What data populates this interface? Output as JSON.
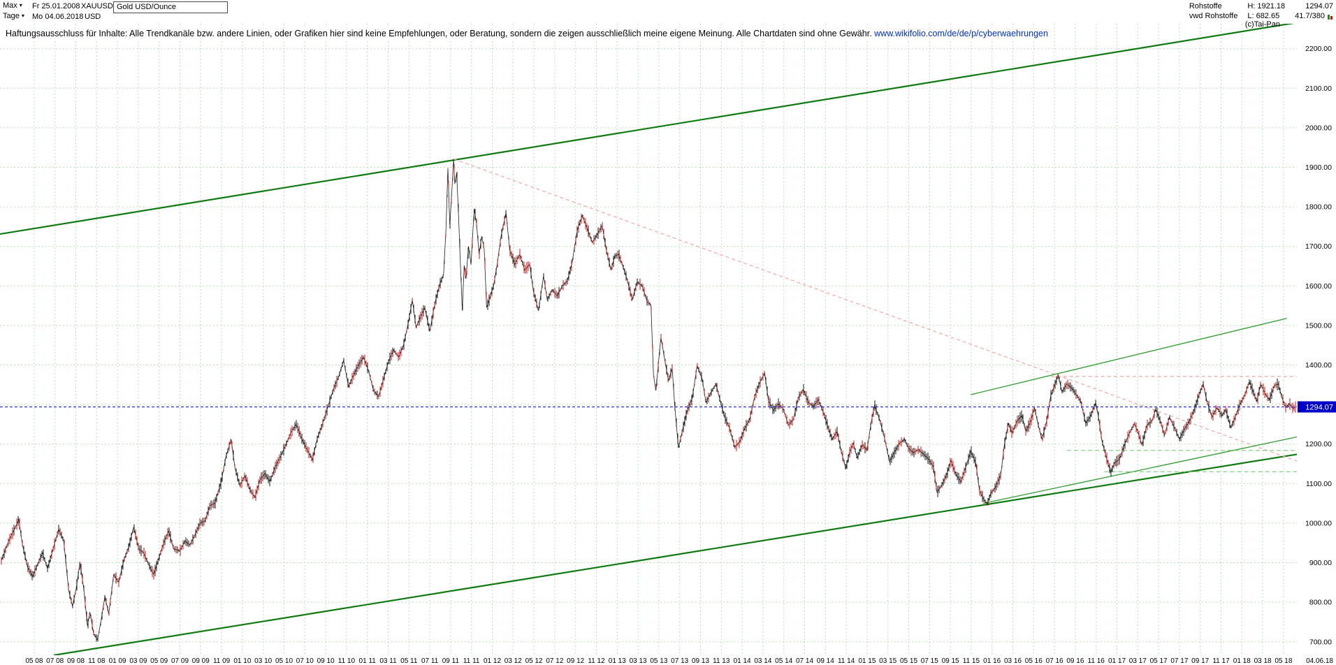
{
  "icons": {
    "caret_down": "▾"
  },
  "header": {
    "range_selector": {
      "label": "Max",
      "date": "Fr 25.01.2008"
    },
    "period_selector": {
      "label": "Tage",
      "date": "Mo 04.06.2018"
    },
    "symbol": "XAUUSD",
    "currency": "USD",
    "instrument": "Gold USD/Ounce",
    "info": {
      "category": "Rohstoffe",
      "source": "vwd Rohstoffe",
      "high": "H: 1921.18",
      "low": "L: 682.65",
      "last": "1294.07",
      "stat": "41.7/380",
      "copyright": "(c)Tai-Pan"
    }
  },
  "disclaimer": {
    "text": "Haftungsausschluss für Inhalte: Alle Trendkanäle bzw. andere Linien, oder Grafiken hier sind keine Empfehlungen, oder Beratung, sondern die zeigen ausschließlich meine eigene Meinung. Alle Chartdaten sind ohne Gewähr.",
    "link": "www.wikifolio.com/de/de/p/cyberwaehrungen"
  },
  "chart_data": {
    "type": "candlestick",
    "title": "XAUUSD Gold USD/Ounce, Tage (daily), Max: Fr 25.01.2008 - Mo 04.06.2018",
    "xlabel": "",
    "ylabel": "USD/Ounce",
    "xlim": [
      2008.06,
      2018.44
    ],
    "ylim": [
      666,
      2263
    ],
    "high": 1921.18,
    "low": 682.65,
    "last": 1294.07,
    "grid": true,
    "grid_color": "#b8dfb8",
    "legend": "none",
    "y_tick_labels": [
      "700.00",
      "800.00",
      "900.00",
      "1000.00",
      "1100.00",
      "1200.00",
      "1300.00",
      "1400.00",
      "1500.00",
      "1600.00",
      "1700.00",
      "1800.00",
      "1900.00",
      "2000.00",
      "2100.00",
      "2200.00"
    ],
    "x_ticks_start": 2008.3333,
    "x_ticks_step": 0.1666667,
    "x_tick_labels": [
      "05 08",
      "07 08",
      "09 08",
      "11 08",
      "01 09",
      "03 09",
      "05 09",
      "07 09",
      "09 09",
      "11 09",
      "01 10",
      "03 10",
      "05 10",
      "07 10",
      "09 10",
      "11 10",
      "01 11",
      "03 11",
      "05 11",
      "07 11",
      "09 11",
      "11 11",
      "01 12",
      "03 12",
      "05 12",
      "07 12",
      "09 12",
      "11 12",
      "01 13",
      "03 13",
      "05 13",
      "07 13",
      "09 13",
      "11 13",
      "01 14",
      "03 14",
      "05 14",
      "07 14",
      "09 14",
      "11 14",
      "01 15",
      "03 15",
      "05 15",
      "07 15",
      "09 15",
      "11 15",
      "01 16",
      "03 16",
      "05 16",
      "07 16",
      "09 16",
      "11 16",
      "01 17",
      "03 17",
      "05 17",
      "07 17",
      "09 17",
      "11 17",
      "01 18",
      "03 18",
      "05 18"
    ],
    "x_last_label": "04.06.18",
    "colors": {
      "up_candle": "#141414",
      "down_candle": "#c41414",
      "channel": "#0f7a0f",
      "minor_trend": "#2d9b2d",
      "dashed_support": "#7ccc7c",
      "resistance_dashed": "#f2a6a6",
      "last_price_line": "#2929d6",
      "last_price_badge": "#0000c8"
    },
    "last_price_line": {
      "value": 1294.07,
      "label": "1294.07"
    },
    "trendlines": [
      {
        "name": "upper-channel-line",
        "color": "#0f7a0f",
        "width": 2.2,
        "dash": null,
        "x1": 2008.06,
        "y1": 1731,
        "x2": 2018.44,
        "y2": 2266
      },
      {
        "name": "lower-channel-line",
        "color": "#0f7a0f",
        "width": 2.2,
        "dash": null,
        "x1": 2008.49,
        "y1": 666,
        "x2": 2018.44,
        "y2": 1174
      },
      {
        "name": "red-downtrend-line",
        "color": "#f2a6a6",
        "width": 1.2,
        "dash": "5 4",
        "x1": 2011.69,
        "y1": 1921,
        "x2": 2018.44,
        "y2": 1157
      },
      {
        "name": "red-resistance-horizontal",
        "color": "#f2a6a6",
        "width": 1.2,
        "dash": "5 4",
        "x1": 2016.47,
        "y1": 1371,
        "x2": 2018.44,
        "y2": 1371
      },
      {
        "name": "green-resistance-line",
        "color": "#2d9b2d",
        "width": 1.3,
        "dash": null,
        "x1": 2015.83,
        "y1": 1325,
        "x2": 2018.36,
        "y2": 1518
      },
      {
        "name": "green-support-line",
        "color": "#2d9b2d",
        "width": 1.3,
        "dash": null,
        "x1": 2015.93,
        "y1": 1050,
        "x2": 2018.44,
        "y2": 1218
      },
      {
        "name": "green-dashed-support-low",
        "color": "#7ccc7c",
        "width": 1.1,
        "dash": "6 4",
        "x1": 2016.9,
        "y1": 1130,
        "x2": 2018.44,
        "y2": 1130
      },
      {
        "name": "green-dashed-support-high",
        "color": "#7ccc7c",
        "width": 1.1,
        "dash": "6 4",
        "x1": 2016.6,
        "y1": 1184,
        "x2": 2018.44,
        "y2": 1184
      }
    ],
    "series": [
      [
        2008.07,
        905
      ],
      [
        2008.1,
        930
      ],
      [
        2008.13,
        955
      ],
      [
        2008.16,
        975
      ],
      [
        2008.19,
        995
      ],
      [
        2008.21,
        1010
      ],
      [
        2008.24,
        945
      ],
      [
        2008.28,
        890
      ],
      [
        2008.32,
        865
      ],
      [
        2008.36,
        895
      ],
      [
        2008.4,
        925
      ],
      [
        2008.44,
        885
      ],
      [
        2008.48,
        930
      ],
      [
        2008.53,
        985
      ],
      [
        2008.57,
        955
      ],
      [
        2008.61,
        830
      ],
      [
        2008.64,
        790
      ],
      [
        2008.67,
        835
      ],
      [
        2008.7,
        900
      ],
      [
        2008.73,
        835
      ],
      [
        2008.76,
        740
      ],
      [
        2008.78,
        775
      ],
      [
        2008.81,
        720
      ],
      [
        2008.84,
        705
      ],
      [
        2008.87,
        755
      ],
      [
        2008.9,
        815
      ],
      [
        2008.93,
        770
      ],
      [
        2008.97,
        870
      ],
      [
        2009.01,
        850
      ],
      [
        2009.05,
        905
      ],
      [
        2009.09,
        940
      ],
      [
        2009.13,
        990
      ],
      [
        2009.17,
        935
      ],
      [
        2009.21,
        925
      ],
      [
        2009.25,
        895
      ],
      [
        2009.29,
        870
      ],
      [
        2009.33,
        910
      ],
      [
        2009.37,
        950
      ],
      [
        2009.41,
        980
      ],
      [
        2009.45,
        935
      ],
      [
        2009.5,
        930
      ],
      [
        2009.54,
        955
      ],
      [
        2009.58,
        945
      ],
      [
        2009.62,
        970
      ],
      [
        2009.66,
        1000
      ],
      [
        2009.7,
        1005
      ],
      [
        2009.74,
        1045
      ],
      [
        2009.78,
        1050
      ],
      [
        2009.83,
        1105
      ],
      [
        2009.87,
        1170
      ],
      [
        2009.91,
        1212
      ],
      [
        2009.94,
        1140
      ],
      [
        2009.98,
        1095
      ],
      [
        2010.02,
        1120
      ],
      [
        2010.06,
        1085
      ],
      [
        2010.1,
        1065
      ],
      [
        2010.14,
        1110
      ],
      [
        2010.18,
        1125
      ],
      [
        2010.22,
        1105
      ],
      [
        2010.26,
        1140
      ],
      [
        2010.3,
        1165
      ],
      [
        2010.35,
        1200
      ],
      [
        2010.39,
        1230
      ],
      [
        2010.43,
        1250
      ],
      [
        2010.48,
        1210
      ],
      [
        2010.52,
        1185
      ],
      [
        2010.56,
        1160
      ],
      [
        2010.6,
        1215
      ],
      [
        2010.64,
        1250
      ],
      [
        2010.69,
        1300
      ],
      [
        2010.73,
        1340
      ],
      [
        2010.77,
        1370
      ],
      [
        2010.81,
        1412
      ],
      [
        2010.85,
        1345
      ],
      [
        2010.89,
        1375
      ],
      [
        2010.93,
        1400
      ],
      [
        2010.97,
        1420
      ],
      [
        2011.01,
        1385
      ],
      [
        2011.05,
        1335
      ],
      [
        2011.09,
        1320
      ],
      [
        2011.13,
        1365
      ],
      [
        2011.17,
        1410
      ],
      [
        2011.21,
        1438
      ],
      [
        2011.25,
        1420
      ],
      [
        2011.29,
        1450
      ],
      [
        2011.33,
        1510
      ],
      [
        2011.36,
        1565
      ],
      [
        2011.39,
        1495
      ],
      [
        2011.43,
        1525
      ],
      [
        2011.46,
        1545
      ],
      [
        2011.5,
        1485
      ],
      [
        2011.54,
        1555
      ],
      [
        2011.58,
        1605
      ],
      [
        2011.61,
        1628
      ],
      [
        2011.63,
        1745
      ],
      [
        2011.645,
        1898
      ],
      [
        2011.66,
        1755
      ],
      [
        2011.675,
        1830
      ],
      [
        2011.69,
        1920
      ],
      [
        2011.7,
        1858
      ],
      [
        2011.715,
        1885
      ],
      [
        2011.73,
        1780
      ],
      [
        2011.745,
        1655
      ],
      [
        2011.76,
        1538
      ],
      [
        2011.775,
        1652
      ],
      [
        2011.79,
        1618
      ],
      [
        2011.81,
        1700
      ],
      [
        2011.83,
        1655
      ],
      [
        2011.855,
        1795
      ],
      [
        2011.875,
        1755
      ],
      [
        2011.895,
        1680
      ],
      [
        2011.915,
        1725
      ],
      [
        2011.935,
        1695
      ],
      [
        2011.955,
        1545
      ],
      [
        2011.98,
        1570
      ],
      [
        2012.01,
        1600
      ],
      [
        2012.04,
        1655
      ],
      [
        2012.07,
        1725
      ],
      [
        2012.11,
        1785
      ],
      [
        2012.14,
        1690
      ],
      [
        2012.18,
        1655
      ],
      [
        2012.22,
        1680
      ],
      [
        2012.26,
        1640
      ],
      [
        2012.3,
        1655
      ],
      [
        2012.33,
        1585
      ],
      [
        2012.37,
        1537
      ],
      [
        2012.41,
        1625
      ],
      [
        2012.44,
        1565
      ],
      [
        2012.48,
        1590
      ],
      [
        2012.52,
        1575
      ],
      [
        2012.56,
        1600
      ],
      [
        2012.6,
        1612
      ],
      [
        2012.64,
        1660
      ],
      [
        2012.68,
        1740
      ],
      [
        2012.72,
        1778
      ],
      [
        2012.76,
        1745
      ],
      [
        2012.8,
        1710
      ],
      [
        2012.84,
        1730
      ],
      [
        2012.88,
        1752
      ],
      [
        2012.91,
        1695
      ],
      [
        2012.95,
        1640
      ],
      [
        2012.98,
        1675
      ],
      [
        2013.01,
        1680
      ],
      [
        2013.04,
        1655
      ],
      [
        2013.08,
        1615
      ],
      [
        2013.12,
        1565
      ],
      [
        2013.16,
        1610
      ],
      [
        2013.2,
        1600
      ],
      [
        2013.24,
        1560
      ],
      [
        2013.27,
        1552
      ],
      [
        2013.29,
        1375
      ],
      [
        2013.31,
        1335
      ],
      [
        2013.33,
        1405
      ],
      [
        2013.35,
        1470
      ],
      [
        2013.38,
        1415
      ],
      [
        2013.41,
        1360
      ],
      [
        2013.44,
        1392
      ],
      [
        2013.46,
        1300
      ],
      [
        2013.49,
        1190
      ],
      [
        2013.52,
        1232
      ],
      [
        2013.56,
        1285
      ],
      [
        2013.6,
        1315
      ],
      [
        2013.64,
        1398
      ],
      [
        2013.68,
        1365
      ],
      [
        2013.71,
        1305
      ],
      [
        2013.75,
        1330
      ],
      [
        2013.79,
        1352
      ],
      [
        2013.82,
        1315
      ],
      [
        2013.86,
        1268
      ],
      [
        2013.9,
        1240
      ],
      [
        2013.94,
        1192
      ],
      [
        2013.98,
        1205
      ],
      [
        2014.02,
        1240
      ],
      [
        2014.06,
        1262
      ],
      [
        2014.1,
        1320
      ],
      [
        2014.14,
        1355
      ],
      [
        2014.18,
        1380
      ],
      [
        2014.21,
        1310
      ],
      [
        2014.25,
        1285
      ],
      [
        2014.29,
        1302
      ],
      [
        2014.33,
        1288
      ],
      [
        2014.37,
        1248
      ],
      [
        2014.41,
        1262
      ],
      [
        2014.45,
        1318
      ],
      [
        2014.49,
        1338
      ],
      [
        2014.53,
        1305
      ],
      [
        2014.57,
        1295
      ],
      [
        2014.61,
        1312
      ],
      [
        2014.65,
        1280
      ],
      [
        2014.69,
        1240
      ],
      [
        2014.72,
        1212
      ],
      [
        2014.76,
        1232
      ],
      [
        2014.79,
        1185
      ],
      [
        2014.83,
        1138
      ],
      [
        2014.86,
        1180
      ],
      [
        2014.89,
        1202
      ],
      [
        2014.92,
        1165
      ],
      [
        2014.96,
        1198
      ],
      [
        2015.0,
        1185
      ],
      [
        2015.03,
        1250
      ],
      [
        2015.06,
        1298
      ],
      [
        2015.1,
        1262
      ],
      [
        2015.14,
        1215
      ],
      [
        2015.18,
        1155
      ],
      [
        2015.22,
        1180
      ],
      [
        2015.26,
        1202
      ],
      [
        2015.3,
        1212
      ],
      [
        2015.33,
        1190
      ],
      [
        2015.37,
        1178
      ],
      [
        2015.41,
        1186
      ],
      [
        2015.45,
        1175
      ],
      [
        2015.49,
        1163
      ],
      [
        2015.53,
        1143
      ],
      [
        2015.56,
        1078
      ],
      [
        2015.6,
        1098
      ],
      [
        2015.64,
        1125
      ],
      [
        2015.67,
        1158
      ],
      [
        2015.71,
        1124
      ],
      [
        2015.75,
        1105
      ],
      [
        2015.79,
        1142
      ],
      [
        2015.83,
        1182
      ],
      [
        2015.87,
        1152
      ],
      [
        2015.9,
        1082
      ],
      [
        2015.93,
        1062
      ],
      [
        2015.96,
        1048
      ],
      [
        2015.99,
        1075
      ],
      [
        2016.03,
        1092
      ],
      [
        2016.07,
        1122
      ],
      [
        2016.1,
        1200
      ],
      [
        2016.13,
        1252
      ],
      [
        2016.16,
        1228
      ],
      [
        2016.2,
        1258
      ],
      [
        2016.24,
        1272
      ],
      [
        2016.27,
        1232
      ],
      [
        2016.31,
        1258
      ],
      [
        2016.34,
        1292
      ],
      [
        2016.37,
        1248
      ],
      [
        2016.4,
        1212
      ],
      [
        2016.44,
        1262
      ],
      [
        2016.47,
        1322
      ],
      [
        2016.5,
        1348
      ],
      [
        2016.53,
        1374
      ],
      [
        2016.56,
        1332
      ],
      [
        2016.6,
        1352
      ],
      [
        2016.64,
        1341
      ],
      [
        2016.68,
        1322
      ],
      [
        2016.71,
        1308
      ],
      [
        2016.75,
        1252
      ],
      [
        2016.79,
        1272
      ],
      [
        2016.83,
        1305
      ],
      [
        2016.85,
        1272
      ],
      [
        2016.88,
        1208
      ],
      [
        2016.91,
        1172
      ],
      [
        2016.95,
        1128
      ],
      [
        2016.98,
        1152
      ],
      [
        2017.02,
        1162
      ],
      [
        2017.06,
        1198
      ],
      [
        2017.1,
        1228
      ],
      [
        2017.14,
        1252
      ],
      [
        2017.17,
        1228
      ],
      [
        2017.2,
        1198
      ],
      [
        2017.24,
        1248
      ],
      [
        2017.28,
        1258
      ],
      [
        2017.31,
        1288
      ],
      [
        2017.35,
        1255
      ],
      [
        2017.38,
        1222
      ],
      [
        2017.42,
        1268
      ],
      [
        2017.46,
        1242
      ],
      [
        2017.5,
        1212
      ],
      [
        2017.54,
        1238
      ],
      [
        2017.58,
        1258
      ],
      [
        2017.62,
        1288
      ],
      [
        2017.66,
        1328
      ],
      [
        2017.69,
        1352
      ],
      [
        2017.72,
        1308
      ],
      [
        2017.76,
        1268
      ],
      [
        2017.8,
        1292
      ],
      [
        2017.84,
        1272
      ],
      [
        2017.87,
        1288
      ],
      [
        2017.91,
        1242
      ],
      [
        2017.94,
        1262
      ],
      [
        2017.98,
        1298
      ],
      [
        2018.02,
        1322
      ],
      [
        2018.06,
        1358
      ],
      [
        2018.09,
        1332
      ],
      [
        2018.12,
        1308
      ],
      [
        2018.15,
        1352
      ],
      [
        2018.19,
        1325
      ],
      [
        2018.22,
        1312
      ],
      [
        2018.26,
        1348
      ],
      [
        2018.29,
        1352
      ],
      [
        2018.32,
        1318
      ],
      [
        2018.35,
        1292
      ],
      [
        2018.38,
        1302
      ],
      [
        2018.41,
        1290
      ],
      [
        2018.43,
        1294.07
      ]
    ]
  }
}
